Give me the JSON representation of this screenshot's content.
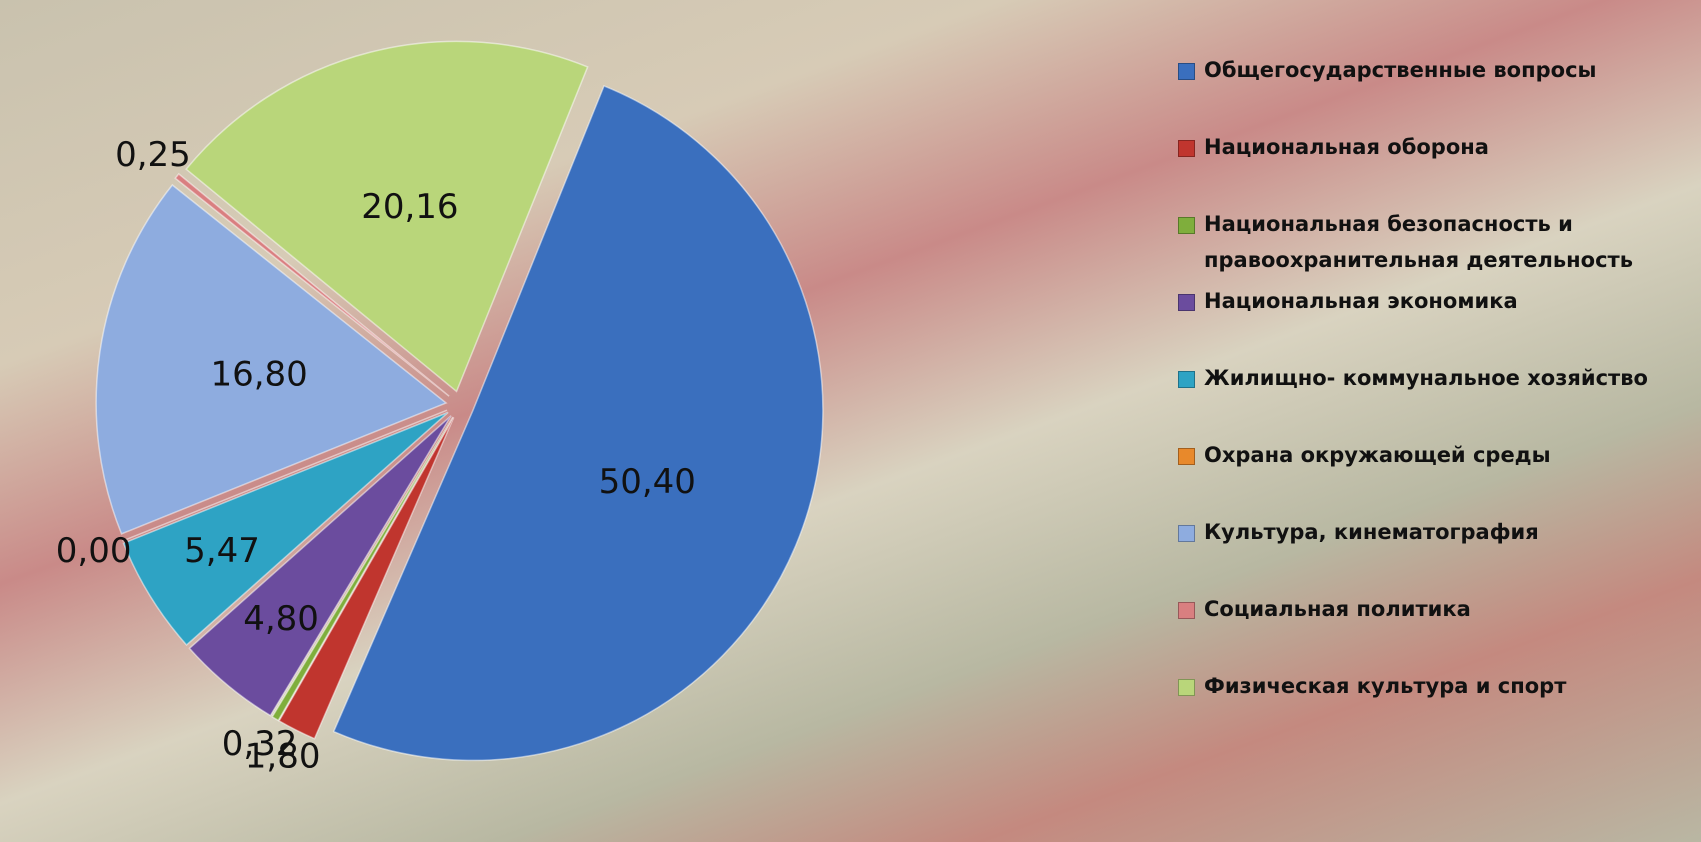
{
  "chart_data": {
    "type": "pie",
    "categories": [
      "Общегосударственные вопросы",
      "Национальная оборона",
      "Национальная безопасность и правоохранительная деятельность",
      "Национальная экономика",
      "Жилищно- коммунальное хозяйство",
      "Охрана окружающей среды",
      "Культура, кинематография",
      "Социальная политика",
      "Физическая культура и спорт"
    ],
    "values": [
      50.4,
      1.8,
      0.32,
      4.8,
      5.47,
      0.0,
      16.8,
      0.25,
      20.16
    ],
    "value_labels": [
      "50,40",
      "1,80",
      "0,32",
      "4,80",
      "5,47",
      "0,00",
      "16,80",
      "0,25",
      "20,16"
    ],
    "colors": [
      "#3a6fbe",
      "#c0352e",
      "#7fae3c",
      "#6b4c9e",
      "#2ea3c4",
      "#e8892b",
      "#8eacdf",
      "#d97f80",
      "#b9d67a"
    ]
  }
}
